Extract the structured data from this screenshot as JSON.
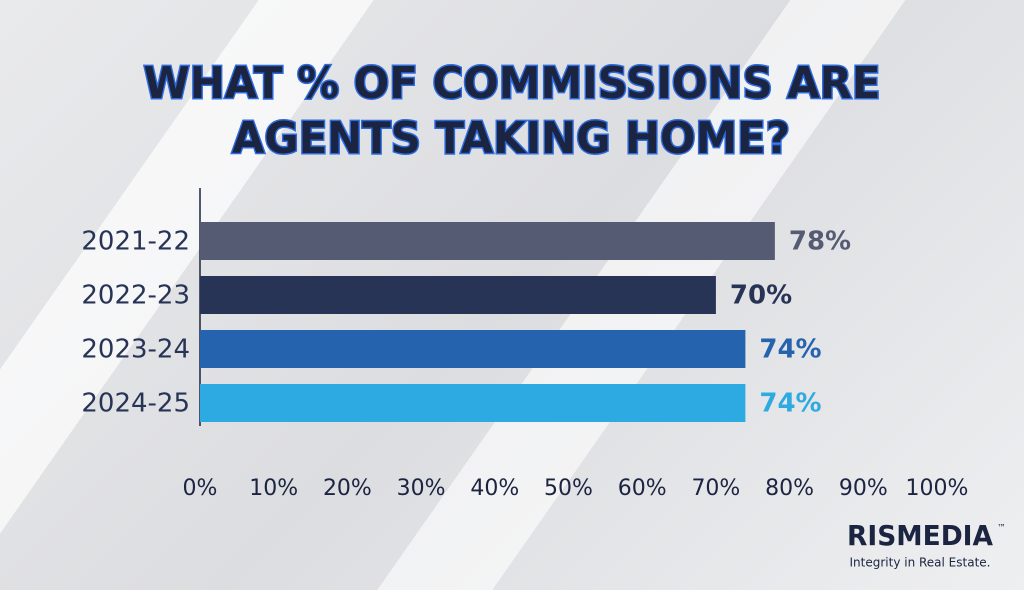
{
  "chart_data": {
    "type": "barh",
    "title": [
      "WHAT % OF COMMISSIONS ARE",
      "AGENTS TAKING HOME?"
    ],
    "categories": [
      "2021-22",
      "2022-23",
      "2023-24",
      "2024-25"
    ],
    "values": [
      78,
      70,
      74,
      74
    ],
    "value_labels": [
      "78%",
      "70%",
      "74%",
      "74%"
    ],
    "colors": [
      "#555b72",
      "#283456",
      "#2563ae",
      "#2eaae2"
    ],
    "xlim": [
      0,
      100
    ],
    "xticks": [
      {
        "value": 0,
        "label": "0%"
      },
      {
        "value": 10,
        "label": "10%"
      },
      {
        "value": 20,
        "label": "20%"
      },
      {
        "value": 30,
        "label": "30%"
      },
      {
        "value": 40,
        "label": "40%"
      },
      {
        "value": 50,
        "label": "50%"
      },
      {
        "value": 60,
        "label": "60%"
      },
      {
        "value": 70,
        "label": "70%"
      },
      {
        "value": 80,
        "label": "80%"
      },
      {
        "value": 90,
        "label": "90%"
      },
      {
        "value": 100,
        "label": "100%"
      }
    ],
    "grid": false
  },
  "logo": {
    "name": "RISMEDIA",
    "mark": "™",
    "tagline": "Integrity in Real Estate."
  }
}
